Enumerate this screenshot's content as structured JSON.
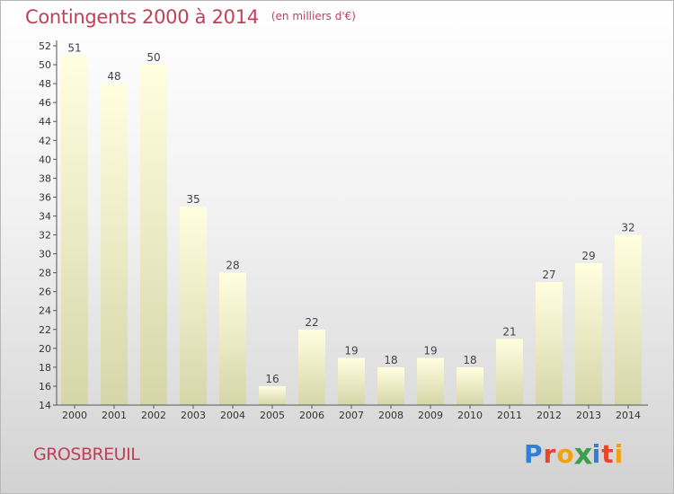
{
  "header": {
    "title": "Contingents 2000 à 2014",
    "subtitle": "(en milliers d'€)"
  },
  "footer": {
    "commune": "GROSBREUIL",
    "logo": {
      "text": "Proxiti",
      "colors": [
        "#2f7fd6",
        "#e8452c",
        "#f2a20d",
        "#3aa04a",
        "#2f7fd6",
        "#e8452c",
        "#f2a20d"
      ]
    }
  },
  "colors": {
    "bar_top": "#ffffdf",
    "bar_bottom": "#d6d6aa",
    "axis": "#555555",
    "title": "#c0405a"
  },
  "chart_data": {
    "type": "bar",
    "categories": [
      "2000",
      "2001",
      "2002",
      "2003",
      "2004",
      "2005",
      "2006",
      "2007",
      "2008",
      "2009",
      "2010",
      "2011",
      "2012",
      "2013",
      "2014"
    ],
    "values": [
      51,
      48,
      50,
      35,
      28,
      16,
      22,
      19,
      18,
      19,
      18,
      21,
      27,
      29,
      32
    ],
    "title": "Contingents 2000 à 2014",
    "subtitle": "(en milliers d'€)",
    "ylim": [
      14,
      52
    ],
    "y_ticks": [
      14,
      16,
      18,
      20,
      22,
      24,
      26,
      28,
      30,
      32,
      34,
      36,
      38,
      40,
      42,
      44,
      46,
      48,
      50,
      52
    ],
    "data_labels": true,
    "grid": false,
    "legend": "none"
  }
}
